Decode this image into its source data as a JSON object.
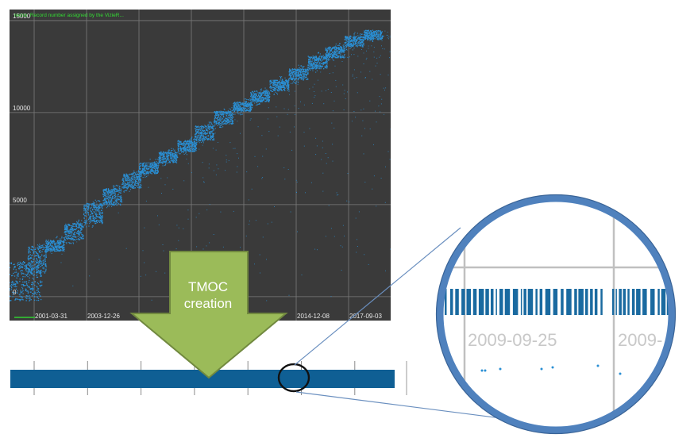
{
  "chart_data": {
    "type": "scatter",
    "title": "recno: Record number assigned by the VizieR...",
    "xlabel": "",
    "ylabel": "",
    "x_tick_labels": [
      "2001-03-31",
      "2003-12-26",
      "2014-12-08",
      "2017-09-03"
    ],
    "y_ticks": [
      0,
      5000,
      10000,
      15000
    ],
    "y_tick_labels": [
      "0",
      "5000",
      "10000",
      "15000"
    ],
    "ylim": [
      -1300,
      15600
    ],
    "grid": true,
    "background": "#3a3a3a",
    "point_color": "#2a8fd4",
    "series": [
      {
        "clusters": [
          {
            "year": 2000.4,
            "y_min": -200,
            "y_max": 1900
          },
          {
            "year": 2001.4,
            "y_min": 1300,
            "y_max": 2800
          },
          {
            "year": 2002.3,
            "y_min": 2500,
            "y_max": 3100
          },
          {
            "year": 2003.3,
            "y_min": 3100,
            "y_max": 4000
          },
          {
            "year": 2004.3,
            "y_min": 4000,
            "y_max": 5100
          },
          {
            "year": 2005.3,
            "y_min": 5000,
            "y_max": 5900
          },
          {
            "year": 2006.3,
            "y_min": 5900,
            "y_max": 6700
          },
          {
            "year": 2007.2,
            "y_min": 6700,
            "y_max": 7300
          },
          {
            "year": 2008.2,
            "y_min": 7300,
            "y_max": 7900
          },
          {
            "year": 2009.2,
            "y_min": 7900,
            "y_max": 8500
          },
          {
            "year": 2010.1,
            "y_min": 8500,
            "y_max": 9300
          },
          {
            "year": 2011.1,
            "y_min": 9400,
            "y_max": 10100
          },
          {
            "year": 2012.1,
            "y_min": 10100,
            "y_max": 10600
          },
          {
            "year": 2013.0,
            "y_min": 10600,
            "y_max": 11200
          },
          {
            "year": 2014.0,
            "y_min": 11200,
            "y_max": 11800
          },
          {
            "year": 2015.0,
            "y_min": 11800,
            "y_max": 12400
          },
          {
            "year": 2016.0,
            "y_min": 12400,
            "y_max": 13100
          },
          {
            "year": 2016.9,
            "y_min": 13000,
            "y_max": 13600
          },
          {
            "year": 2017.9,
            "y_min": 13600,
            "y_max": 14200
          },
          {
            "year": 2018.9,
            "y_min": 14000,
            "y_max": 14500
          }
        ]
      }
    ]
  },
  "arrow": {
    "label_line1": "TMOC",
    "label_line2": "creation",
    "fill": "#9bbb59",
    "stroke": "#71893f"
  },
  "tmoc_bar": {
    "color": "#0f5f94",
    "segments": 7
  },
  "magnifier": {
    "date_label_1": "2009-09-25",
    "date_label_2": "2009-",
    "ring_color": "#4f81bd",
    "stripe_color": "#1a6aa0"
  }
}
